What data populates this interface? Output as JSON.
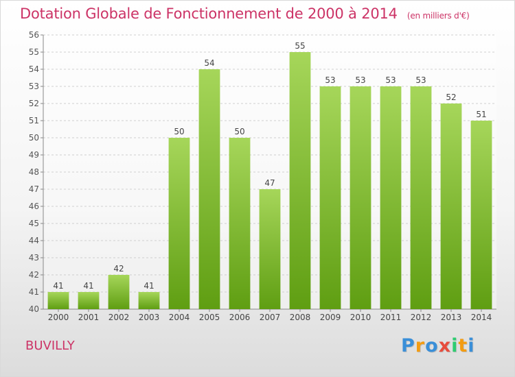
{
  "chart_data": {
    "type": "bar",
    "title": "Dotation Globale de Fonctionnement de 2000 à 2014",
    "unit_note": "(en milliers d'€)",
    "categories": [
      "2000",
      "2001",
      "2002",
      "2003",
      "2004",
      "2005",
      "2006",
      "2007",
      "2008",
      "2009",
      "2010",
      "2011",
      "2012",
      "2013",
      "2014"
    ],
    "values": [
      41,
      41,
      42,
      41,
      50,
      54,
      50,
      47,
      55,
      53,
      53,
      53,
      53,
      52,
      51
    ],
    "ylim": [
      40,
      56
    ],
    "yticks": [
      40,
      41,
      42,
      43,
      44,
      45,
      46,
      47,
      48,
      49,
      50,
      51,
      52,
      53,
      54,
      55,
      56
    ],
    "xlabel": "",
    "ylabel": "",
    "grid": true,
    "bar_color_top": "#a6d65a",
    "bar_color_bottom": "#5f9e12"
  },
  "commune": "BUVILLY",
  "logo": {
    "letters": [
      "P",
      "r",
      "o",
      "x",
      "i",
      "t",
      "i"
    ],
    "colors": [
      "#3a8fd8",
      "#f39c12",
      "#3a8fd8",
      "#e74c3c",
      "#2ecc71",
      "#f39c12",
      "#3a8fd8"
    ]
  }
}
